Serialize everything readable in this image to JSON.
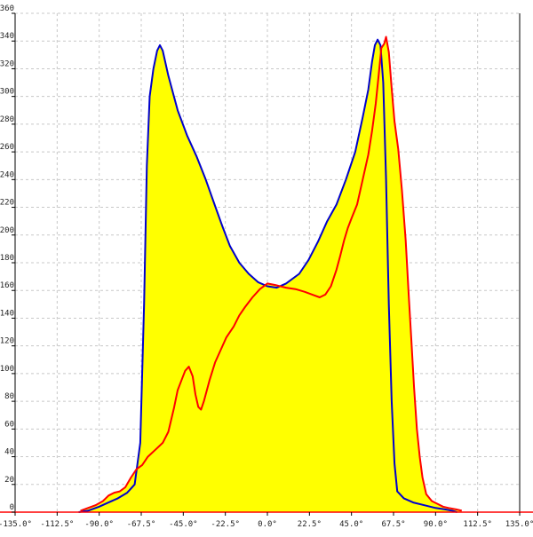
{
  "chart_data": {
    "type": "area",
    "title": "",
    "xlabel": "",
    "ylabel": "",
    "grid": true,
    "xlim": [
      -135,
      135
    ],
    "ylim": [
      0,
      360
    ],
    "x_ticks": [
      -135,
      -112.5,
      -90,
      -67.5,
      -45,
      -22.5,
      0,
      22.5,
      45,
      67.5,
      90,
      112.5,
      135
    ],
    "x_tick_labels": [
      "-135.0°",
      "-112.5°",
      "-90.0°",
      "-67.5°",
      "-45.0°",
      "-22.5°",
      "0.0°",
      "22.5°",
      "45.0°",
      "67.5°",
      "90.0°",
      "112.5°",
      "135.0°"
    ],
    "y_ticks": [
      0,
      20,
      40,
      60,
      80,
      100,
      120,
      140,
      160,
      180,
      200,
      220,
      240,
      260,
      280,
      300,
      320,
      340,
      360
    ],
    "y_tick_labels": [
      "0",
      "20",
      "40",
      "60",
      "80",
      "100",
      "120",
      "140",
      "160",
      "180",
      "200",
      "220",
      "240",
      "260",
      "280",
      "300",
      "320",
      "340",
      "360"
    ],
    "fill_color": "#ffff00",
    "series": [
      {
        "color": "#0000cc",
        "points": [
          [
            -101,
            0
          ],
          [
            -96,
            1
          ],
          [
            -90,
            4
          ],
          [
            -85,
            7
          ],
          [
            -80,
            10
          ],
          [
            -75,
            14
          ],
          [
            -71,
            20
          ],
          [
            -68,
            50
          ],
          [
            -66,
            150
          ],
          [
            -64.5,
            250
          ],
          [
            -63,
            300
          ],
          [
            -61,
            320
          ],
          [
            -59,
            333
          ],
          [
            -57.5,
            337
          ],
          [
            -56,
            333
          ],
          [
            -53,
            315
          ],
          [
            -48,
            290
          ],
          [
            -43,
            272
          ],
          [
            -38,
            257
          ],
          [
            -33,
            240
          ],
          [
            -28,
            221
          ],
          [
            -24,
            206
          ],
          [
            -20,
            192
          ],
          [
            -15,
            180
          ],
          [
            -10,
            172
          ],
          [
            -5,
            166
          ],
          [
            0,
            163
          ],
          [
            5,
            162
          ],
          [
            10,
            165
          ],
          [
            17,
            172
          ],
          [
            22,
            182
          ],
          [
            27,
            195
          ],
          [
            32,
            210
          ],
          [
            37,
            222
          ],
          [
            42,
            240
          ],
          [
            47,
            260
          ],
          [
            51,
            285
          ],
          [
            54,
            305
          ],
          [
            56,
            325
          ],
          [
            57.5,
            337
          ],
          [
            59,
            341
          ],
          [
            60.5,
            337
          ],
          [
            62,
            310
          ],
          [
            63.5,
            240
          ],
          [
            65,
            150
          ],
          [
            66.5,
            80
          ],
          [
            68,
            35
          ],
          [
            69.5,
            15
          ],
          [
            73,
            10
          ],
          [
            78,
            7
          ],
          [
            84,
            5
          ],
          [
            90,
            3
          ],
          [
            95,
            2
          ],
          [
            99,
            1
          ],
          [
            101.5,
            0
          ]
        ]
      },
      {
        "color": "#ff0000",
        "points": [
          [
            -100,
            1
          ],
          [
            -96,
            3
          ],
          [
            -92,
            5
          ],
          [
            -88,
            8
          ],
          [
            -85,
            12
          ],
          [
            -82,
            14
          ],
          [
            -79,
            15
          ],
          [
            -76,
            18
          ],
          [
            -73,
            25
          ],
          [
            -70,
            31
          ],
          [
            -67,
            34
          ],
          [
            -64,
            40
          ],
          [
            -60,
            45
          ],
          [
            -56,
            50
          ],
          [
            -53,
            58
          ],
          [
            -50,
            75
          ],
          [
            -48,
            88
          ],
          [
            -46,
            95
          ],
          [
            -44,
            102
          ],
          [
            -42,
            105
          ],
          [
            -40,
            98
          ],
          [
            -38.5,
            85
          ],
          [
            -37,
            76
          ],
          [
            -35.5,
            74
          ],
          [
            -34,
            80
          ],
          [
            -31,
            95
          ],
          [
            -28,
            108
          ],
          [
            -25,
            117
          ],
          [
            -22,
            126
          ],
          [
            -18,
            134
          ],
          [
            -15,
            142
          ],
          [
            -12,
            148
          ],
          [
            -8,
            155
          ],
          [
            -4,
            161
          ],
          [
            0,
            165
          ],
          [
            4,
            164
          ],
          [
            10,
            162
          ],
          [
            15,
            161
          ],
          [
            20,
            159
          ],
          [
            24,
            157
          ],
          [
            28,
            155
          ],
          [
            31,
            157
          ],
          [
            34,
            163
          ],
          [
            37,
            175
          ],
          [
            39,
            185
          ],
          [
            41,
            196
          ],
          [
            43,
            205
          ],
          [
            45,
            212
          ],
          [
            48,
            222
          ],
          [
            51,
            240
          ],
          [
            54,
            258
          ],
          [
            56,
            275
          ],
          [
            58,
            295
          ],
          [
            59.5,
            315
          ],
          [
            61,
            335
          ],
          [
            62.5,
            338
          ],
          [
            63.5,
            343
          ],
          [
            65,
            332
          ],
          [
            66.5,
            306
          ],
          [
            68,
            282
          ],
          [
            70,
            262
          ],
          [
            72,
            232
          ],
          [
            74,
            196
          ],
          [
            75.5,
            160
          ],
          [
            77,
            125
          ],
          [
            78.5,
            90
          ],
          [
            80,
            60
          ],
          [
            81.5,
            40
          ],
          [
            83,
            25
          ],
          [
            85,
            13
          ],
          [
            88,
            8
          ],
          [
            91,
            6
          ],
          [
            94,
            4
          ],
          [
            97,
            3
          ],
          [
            101,
            2
          ],
          [
            104,
            1
          ]
        ]
      }
    ]
  }
}
